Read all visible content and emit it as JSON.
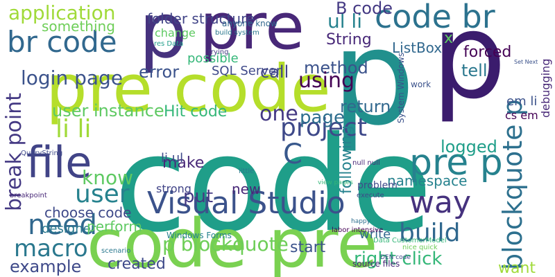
{
  "words": [
    "code",
    "p",
    "pre",
    "pre code",
    "p",
    "p",
    "code pre",
    "code br",
    "br code",
    "application",
    "something",
    "login page",
    "file",
    "break point",
    "user",
    "need",
    "macro",
    "example",
    "Visual Studio",
    "user instance",
    "li li",
    "Hit code",
    "one",
    "project",
    "C",
    "page",
    "pre p",
    "way",
    "blockquote p",
    "build",
    "right click",
    "p blockquote",
    "created",
    "know",
    "make",
    "put",
    "choose code",
    "designer",
    "perform",
    "logged",
    "namespace",
    "method",
    "using",
    "return",
    "forced",
    "ListBox",
    "tell",
    "call",
    "error",
    "possible",
    "SQL Server",
    "String",
    "ul li",
    "B code",
    "folder structure",
    "change",
    "x",
    "start",
    "write",
    "want",
    "new",
    "following",
    "em li",
    "debugging",
    "strong",
    "li ul",
    "Windows Forms",
    "problem",
    "cs em",
    "Data CustomerModel",
    "anyone know",
    "build system",
    "res Data",
    "trying",
    "System Windows",
    "null null",
    "execute",
    "little",
    "breakpoint",
    "QueryString",
    "scenario",
    "labor intensive",
    "happy",
    "view pages",
    "work",
    "source files",
    "nice quick",
    "DEN code",
    "Set Next"
  ]
}
